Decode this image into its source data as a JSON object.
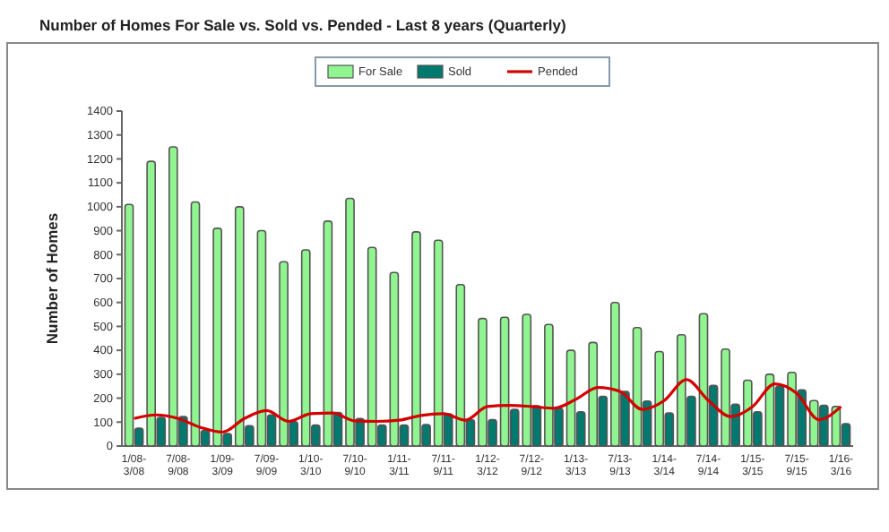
{
  "chart_data": {
    "type": "bar",
    "title": "Number of Homes For Sale vs. Sold vs. Pended - Last 8 years (Quarterly)",
    "ylabel": "Number of Homes",
    "categories": [
      "1/08-3/08",
      null,
      "7/08-9/08",
      null,
      "1/09-3/09",
      null,
      "7/09-9/09",
      null,
      "1/10-3/10",
      null,
      "7/10-9/10",
      null,
      "1/11-3/11",
      null,
      "7/11-9/11",
      null,
      "1/12-3/12",
      null,
      "7/12-9/12",
      null,
      "1/13-3/13",
      null,
      "7/13-9/13",
      null,
      "1/14-3/14",
      null,
      "7/14-9/14",
      null,
      "1/15-3/15",
      null,
      "7/15-9/15",
      null,
      "1/16-3/16"
    ],
    "series": [
      {
        "name": "For Sale",
        "color": "#90f590",
        "values": [
          1010,
          1190,
          1250,
          1020,
          910,
          1000,
          900,
          770,
          820,
          940,
          1035,
          830,
          725,
          895,
          860,
          675,
          533,
          538,
          550,
          508,
          400,
          433,
          600,
          495,
          395,
          465,
          553,
          405,
          275,
          300,
          308,
          190,
          165
        ]
      },
      {
        "name": "Sold",
        "color": "#00796e",
        "values": [
          75,
          120,
          123,
          65,
          52,
          85,
          130,
          102,
          88,
          140,
          115,
          88,
          88,
          90,
          135,
          110,
          110,
          153,
          168,
          158,
          143,
          208,
          228,
          188,
          138,
          208,
          253,
          175,
          143,
          250,
          235,
          170,
          93
        ]
      },
      {
        "name": "Pended",
        "type": "line",
        "color": "#d40000",
        "values": [
          115,
          130,
          115,
          78,
          58,
          115,
          148,
          103,
          135,
          138,
          105,
          103,
          108,
          128,
          135,
          108,
          165,
          170,
          165,
          158,
          195,
          245,
          228,
          153,
          190,
          278,
          190,
          123,
          165,
          260,
          220,
          110,
          165
        ]
      }
    ],
    "ylim": [
      0,
      1400
    ],
    "yticks": [
      0,
      100,
      200,
      300,
      400,
      500,
      600,
      700,
      800,
      900,
      1000,
      1100,
      1200,
      1300,
      1400
    ],
    "legend": "top",
    "marker": "none",
    "line_style": "solid"
  }
}
